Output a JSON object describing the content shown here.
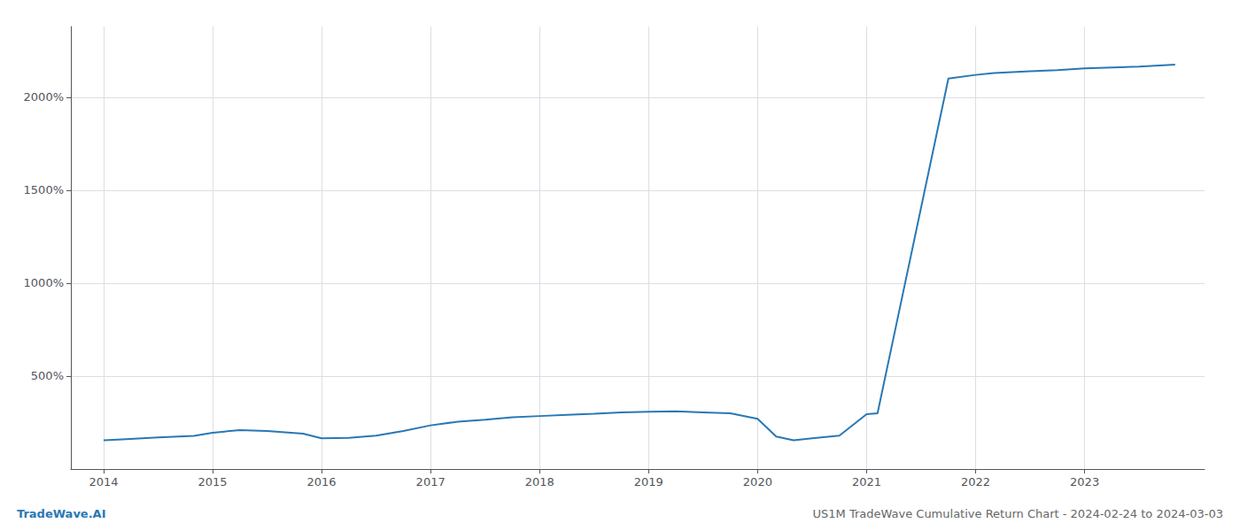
{
  "chart_data": {
    "type": "line",
    "title": "US1M TradeWave Cumulative Return Chart - 2024-02-24 to 2024-03-03",
    "annotations": [
      {
        "text": "TradeWave.AI",
        "color": "#2878b5"
      }
    ],
    "x": [
      2014.0,
      2014.17,
      2014.5,
      2014.83,
      2015.0,
      2015.25,
      2015.5,
      2015.83,
      2016.0,
      2016.25,
      2016.5,
      2016.75,
      2017.0,
      2017.25,
      2017.5,
      2017.75,
      2018.0,
      2018.25,
      2018.5,
      2018.75,
      2019.0,
      2019.25,
      2019.5,
      2019.75,
      2020.0,
      2020.17,
      2020.33,
      2020.5,
      2020.75,
      2021.0,
      2021.1,
      2021.75,
      2022.0,
      2022.17,
      2022.5,
      2022.75,
      2023.0,
      2023.5,
      2023.83
    ],
    "values": [
      155,
      160,
      170,
      178,
      195,
      210,
      205,
      190,
      165,
      168,
      180,
      205,
      235,
      255,
      265,
      278,
      285,
      292,
      298,
      305,
      308,
      310,
      305,
      300,
      270,
      175,
      155,
      165,
      180,
      295,
      300,
      2100,
      2120,
      2130,
      2140,
      2145,
      2155,
      2165,
      2175
    ],
    "color": "#2878b5",
    "xlim": [
      2013.7,
      2024.1
    ],
    "xticks": [
      2014,
      2015,
      2016,
      2017,
      2018,
      2019,
      2020,
      2021,
      2022,
      2023
    ],
    "ylim": [
      0,
      2380
    ],
    "yticks": [
      {
        "value": 500,
        "label": "500%"
      },
      {
        "value": 1000,
        "label": "1000%"
      },
      {
        "value": 1500,
        "label": "1500%"
      },
      {
        "value": 2000,
        "label": "2000%"
      }
    ],
    "grid": true
  }
}
